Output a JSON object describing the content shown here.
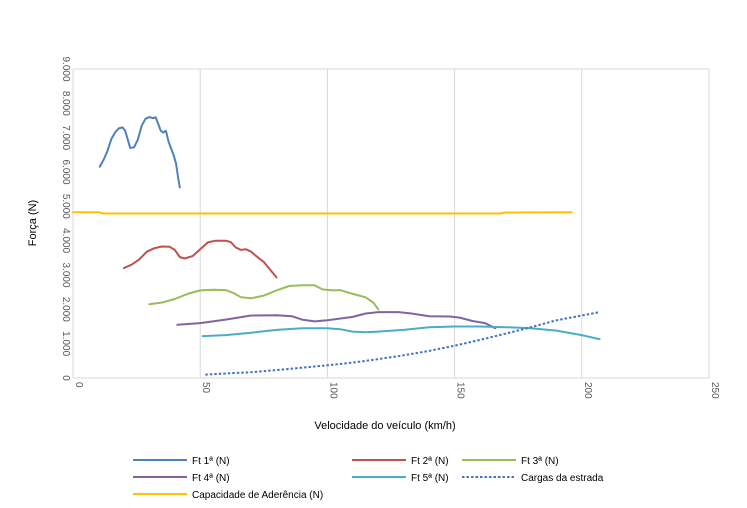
{
  "chart_data": {
    "type": "line",
    "title": "",
    "xlabel": "Velocidade do veículo (km/h)",
    "ylabel": "Força (N)",
    "xlim": [
      0,
      250
    ],
    "ylim": [
      0,
      9000
    ],
    "x_ticks": [
      0,
      50,
      100,
      150,
      200,
      250
    ],
    "y_ticks": [
      0,
      1000,
      2000,
      3000,
      4000,
      5000,
      6000,
      7000,
      8000,
      9000
    ],
    "x_tick_labels": [
      "0",
      "50",
      "100",
      "150",
      "200",
      "250"
    ],
    "y_tick_labels": [
      "0",
      "1.000",
      "2.000",
      "3.000",
      "4.000",
      "5.000",
      "6.000",
      "7.000",
      "8.000",
      "9.000"
    ],
    "grid": "vertical",
    "legend_position": "bottom",
    "series": [
      {
        "name": "Ft 1ª (N)",
        "color": "#4f81bd",
        "dash": "solid",
        "points": [
          [
            10.5,
            6150
          ],
          [
            12,
            6350
          ],
          [
            13.5,
            6600
          ],
          [
            15,
            6950
          ],
          [
            16.5,
            7150
          ],
          [
            18,
            7270
          ],
          [
            19.5,
            7300
          ],
          [
            20.5,
            7200
          ],
          [
            21.5,
            6950
          ],
          [
            22.5,
            6700
          ],
          [
            24,
            6720
          ],
          [
            25.5,
            6950
          ],
          [
            27,
            7350
          ],
          [
            28.5,
            7550
          ],
          [
            30,
            7600
          ],
          [
            31.5,
            7570
          ],
          [
            32.5,
            7590
          ],
          [
            33.5,
            7400
          ],
          [
            34.5,
            7200
          ],
          [
            35.5,
            7150
          ],
          [
            36.5,
            7200
          ],
          [
            37.5,
            6900
          ],
          [
            38.5,
            6700
          ],
          [
            39.5,
            6500
          ],
          [
            40.5,
            6250
          ],
          [
            41.5,
            5750
          ],
          [
            42,
            5550
          ]
        ]
      },
      {
        "name": "Ft 2ª (N)",
        "color": "#c0504d",
        "dash": "solid",
        "points": [
          [
            20,
            3200
          ],
          [
            23,
            3300
          ],
          [
            26,
            3450
          ],
          [
            29,
            3680
          ],
          [
            32,
            3780
          ],
          [
            35,
            3830
          ],
          [
            38,
            3820
          ],
          [
            40,
            3730
          ],
          [
            42,
            3520
          ],
          [
            44,
            3480
          ],
          [
            47,
            3550
          ],
          [
            50,
            3750
          ],
          [
            53,
            3950
          ],
          [
            56,
            4000
          ],
          [
            60,
            4000
          ],
          [
            62,
            3960
          ],
          [
            64,
            3800
          ],
          [
            66,
            3730
          ],
          [
            68,
            3750
          ],
          [
            70,
            3680
          ],
          [
            72,
            3550
          ],
          [
            75,
            3380
          ],
          [
            77,
            3200
          ],
          [
            80,
            2930
          ]
        ]
      },
      {
        "name": "Ft 3ª (N)",
        "color": "#9bbb59",
        "dash": "solid",
        "points": [
          [
            30,
            2150
          ],
          [
            35,
            2200
          ],
          [
            40,
            2300
          ],
          [
            45,
            2450
          ],
          [
            50,
            2550
          ],
          [
            55,
            2570
          ],
          [
            60,
            2560
          ],
          [
            63,
            2480
          ],
          [
            66,
            2350
          ],
          [
            70,
            2320
          ],
          [
            75,
            2400
          ],
          [
            80,
            2550
          ],
          [
            85,
            2680
          ],
          [
            90,
            2700
          ],
          [
            95,
            2700
          ],
          [
            98,
            2580
          ],
          [
            102,
            2550
          ],
          [
            105,
            2560
          ],
          [
            110,
            2450
          ],
          [
            115,
            2350
          ],
          [
            118,
            2200
          ],
          [
            120,
            2000
          ]
        ]
      },
      {
        "name": "Ft 4ª (N)",
        "color": "#8064a2",
        "dash": "solid",
        "points": [
          [
            41,
            1550
          ],
          [
            50,
            1600
          ],
          [
            60,
            1700
          ],
          [
            70,
            1820
          ],
          [
            80,
            1830
          ],
          [
            86,
            1800
          ],
          [
            90,
            1700
          ],
          [
            95,
            1650
          ],
          [
            100,
            1680
          ],
          [
            110,
            1780
          ],
          [
            115,
            1880
          ],
          [
            120,
            1920
          ],
          [
            128,
            1920
          ],
          [
            133,
            1880
          ],
          [
            140,
            1800
          ],
          [
            148,
            1790
          ],
          [
            152,
            1760
          ],
          [
            157,
            1660
          ],
          [
            162,
            1600
          ],
          [
            166,
            1450
          ]
        ]
      },
      {
        "name": "Ft 5ª (N)",
        "color": "#4bacc6",
        "dash": "solid",
        "points": [
          [
            51,
            1220
          ],
          [
            60,
            1250
          ],
          [
            70,
            1320
          ],
          [
            80,
            1400
          ],
          [
            90,
            1450
          ],
          [
            100,
            1450
          ],
          [
            105,
            1420
          ],
          [
            110,
            1350
          ],
          [
            115,
            1330
          ],
          [
            120,
            1350
          ],
          [
            130,
            1400
          ],
          [
            140,
            1480
          ],
          [
            150,
            1500
          ],
          [
            160,
            1500
          ],
          [
            170,
            1480
          ],
          [
            180,
            1450
          ],
          [
            190,
            1380
          ],
          [
            200,
            1250
          ],
          [
            207,
            1130
          ]
        ]
      },
      {
        "name": "Cargas da estrada",
        "color": "#4472c4",
        "dash": "dotted",
        "points": [
          [
            52,
            100
          ],
          [
            60,
            130
          ],
          [
            70,
            170
          ],
          [
            80,
            230
          ],
          [
            90,
            300
          ],
          [
            100,
            370
          ],
          [
            110,
            450
          ],
          [
            120,
            550
          ],
          [
            130,
            660
          ],
          [
            140,
            790
          ],
          [
            150,
            940
          ],
          [
            160,
            1110
          ],
          [
            170,
            1290
          ],
          [
            180,
            1480
          ],
          [
            190,
            1680
          ],
          [
            200,
            1820
          ],
          [
            207,
            1920
          ]
        ]
      },
      {
        "name": "Capacidade de Aderência (N)",
        "color": "#ffc000",
        "dash": "solid",
        "points": [
          [
            0,
            4830
          ],
          [
            10,
            4830
          ],
          [
            12,
            4790
          ],
          [
            50,
            4790
          ],
          [
            100,
            4790
          ],
          [
            150,
            4790
          ],
          [
            168,
            4790
          ],
          [
            170,
            4820
          ],
          [
            196,
            4830
          ]
        ]
      }
    ]
  }
}
